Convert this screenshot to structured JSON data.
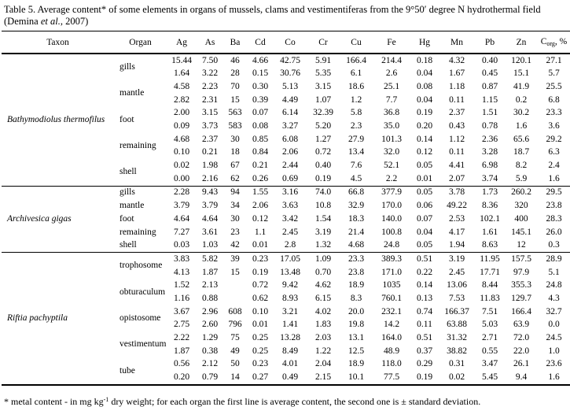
{
  "title": {
    "prefix": "Table 5. Average content* of some elements in organs of mussels, clams and vestimentiferas from the 9°50′ degree N hydrothermal field (Demina ",
    "italic": "et al.",
    "suffix": ", 2007)"
  },
  "table": {
    "headers": {
      "taxon": "Taxon",
      "organ": "Organ",
      "elements": [
        "Ag",
        "As",
        "Ba",
        "Cd",
        "Co",
        "Cr",
        "Cu",
        "Fe",
        "Hg",
        "Mn",
        "Pb",
        "Zn"
      ],
      "corg": {
        "base": "C",
        "sub": "org",
        "rest": ", %"
      }
    },
    "sections": [
      {
        "taxon": "Bathymodiolus thermofilus",
        "organs": [
          {
            "name": "gills",
            "rows": [
              [
                "15.44",
                "7.50",
                "46",
                "4.66",
                "42.75",
                "5.91",
                "166.4",
                "214.4",
                "0.18",
                "4.32",
                "0.40",
                "120.1",
                "27.1"
              ],
              [
                "1.64",
                "3.22",
                "28",
                "0.15",
                "30.76",
                "5.35",
                "6.1",
                "2.6",
                "0.04",
                "1.67",
                "0.45",
                "15.1",
                "5.7"
              ]
            ]
          },
          {
            "name": "mantle",
            "rows": [
              [
                "4.58",
                "2.23",
                "70",
                "0.30",
                "5.13",
                "3.15",
                "18.6",
                "25.1",
                "0.08",
                "1.18",
                "0.87",
                "41.9",
                "25.5"
              ],
              [
                "2.82",
                "2.31",
                "15",
                "0.39",
                "4.49",
                "1.07",
                "1.2",
                "7.7",
                "0.04",
                "0.11",
                "1.15",
                "0.2",
                "6.8"
              ]
            ]
          },
          {
            "name": "foot",
            "rows": [
              [
                "2.00",
                "3.15",
                "563",
                "0.07",
                "6.14",
                "32.39",
                "5.8",
                "36.8",
                "0.19",
                "2.37",
                "1.51",
                "30.2",
                "23.3"
              ],
              [
                "0.09",
                "3.73",
                "583",
                "0.08",
                "3.27",
                "5.20",
                "2.3",
                "35.0",
                "0.20",
                "0.43",
                "0.78",
                "1.6",
                "3.6"
              ]
            ]
          },
          {
            "name": "remaining",
            "rows": [
              [
                "4.68",
                "2.37",
                "30",
                "0.85",
                "6.08",
                "1.27",
                "27.9",
                "101.3",
                "0.14",
                "1.12",
                "2.36",
                "65.6",
                "29.2"
              ],
              [
                "0.10",
                "0.21",
                "18",
                "0.84",
                "2.06",
                "0.72",
                "13.4",
                "32.0",
                "0.12",
                "0.11",
                "3.28",
                "18.7",
                "6.3"
              ]
            ]
          },
          {
            "name": "shell",
            "rows": [
              [
                "0.02",
                "1.98",
                "67",
                "0.21",
                "2.44",
                "0.40",
                "7.6",
                "52.1",
                "0.05",
                "4.41",
                "6.98",
                "8.2",
                "2.4"
              ],
              [
                "0.00",
                "2.16",
                "62",
                "0.26",
                "0.69",
                "0.19",
                "4.5",
                "2.2",
                "0.01",
                "2.07",
                "3.74",
                "5.9",
                "1.6"
              ]
            ]
          }
        ]
      },
      {
        "taxon": "Archivesica gigas",
        "organs": [
          {
            "name": "gills",
            "rows": [
              [
                "2.28",
                "9.43",
                "94",
                "1.55",
                "3.16",
                "74.0",
                "66.8",
                "377.9",
                "0.05",
                "3.78",
                "1.73",
                "260.2",
                "29.5"
              ]
            ]
          },
          {
            "name": "mantle",
            "rows": [
              [
                "3.79",
                "3.79",
                "34",
                "2.06",
                "3.63",
                "10.8",
                "32.9",
                "170.0",
                "0.06",
                "49.22",
                "8.36",
                "320",
                "23.8"
              ]
            ]
          },
          {
            "name": "foot",
            "rows": [
              [
                "4.64",
                "4.64",
                "30",
                "0.12",
                "3.42",
                "1.54",
                "18.3",
                "140.0",
                "0.07",
                "2.53",
                "102.1",
                "400",
                "28.3"
              ]
            ]
          },
          {
            "name": "remaining",
            "rows": [
              [
                "7.27",
                "3.61",
                "23",
                "1.1",
                "2.45",
                "3.19",
                "21.4",
                "100.8",
                "0.04",
                "4.17",
                "1.61",
                "145.1",
                "26.0"
              ]
            ]
          },
          {
            "name": "shell",
            "rows": [
              [
                "0.03",
                "1.03",
                "42",
                "0.01",
                "2.8",
                "1.32",
                "4.68",
                "24.8",
                "0.05",
                "1.94",
                "8.63",
                "12",
                "0.3"
              ]
            ]
          }
        ]
      },
      {
        "taxon": "Riftia pachyptila",
        "organs": [
          {
            "name": "trophosome",
            "rows": [
              [
                "3.83",
                "5.82",
                "39",
                "0.23",
                "17.05",
                "1.09",
                "23.3",
                "389.3",
                "0.51",
                "3.19",
                "11.95",
                "157.5",
                "28.9"
              ],
              [
                "4.13",
                "1.87",
                "15",
                "0.19",
                "13.48",
                "0.70",
                "23.8",
                "171.0",
                "0.22",
                "2.45",
                "17.71",
                "97.9",
                "5.1"
              ]
            ]
          },
          {
            "name": "obturaculum",
            "rows": [
              [
                "1.52",
                "2.13",
                "",
                "0.72",
                "9.42",
                "4.62",
                "18.9",
                "1035",
                "0.14",
                "13.06",
                "8.44",
                "355.3",
                "24.8"
              ],
              [
                "1.16",
                "0.88",
                "",
                "0.62",
                "8.93",
                "6.15",
                "8.3",
                "760.1",
                "0.13",
                "7.53",
                "11.83",
                "129.7",
                "4.3"
              ]
            ]
          },
          {
            "name": "opistosome",
            "rows": [
              [
                "3.67",
                "2.96",
                "608",
                "0.10",
                "3.21",
                "4.02",
                "20.0",
                "232.1",
                "0.74",
                "166.37",
                "7.51",
                "166.4",
                "32.7"
              ],
              [
                "2.75",
                "2.60",
                "796",
                "0.01",
                "1.41",
                "1.83",
                "19.8",
                "14.2",
                "0.11",
                "63.88",
                "5.03",
                "63.9",
                "0.0"
              ]
            ]
          },
          {
            "name": "vestimentum",
            "rows": [
              [
                "2.22",
                "1.29",
                "75",
                "0.25",
                "13.28",
                "2.03",
                "13.1",
                "164.0",
                "0.51",
                "31.32",
                "2.71",
                "72.0",
                "24.5"
              ],
              [
                "1.87",
                "0.38",
                "49",
                "0.25",
                "8.49",
                "1.22",
                "12.5",
                "48.9",
                "0.37",
                "38.82",
                "0.55",
                "22.0",
                "1.0"
              ]
            ]
          },
          {
            "name": "tube",
            "rows": [
              [
                "0.56",
                "2.12",
                "50",
                "0.23",
                "4.01",
                "2.04",
                "18.9",
                "118.0",
                "0.29",
                "0.31",
                "3.47",
                "26.1",
                "23.6"
              ],
              [
                "0.20",
                "0.79",
                "14",
                "0.27",
                "0.49",
                "2.15",
                "10.1",
                "77.5",
                "0.19",
                "0.02",
                "5.45",
                "9.4",
                "1.6"
              ]
            ]
          }
        ]
      }
    ]
  },
  "footnote": {
    "part1": "* metal content - in mg kg",
    "sup": "-1",
    "part2": " dry weight; for each organ the first line is average content, the second one is ± standard deviation."
  }
}
